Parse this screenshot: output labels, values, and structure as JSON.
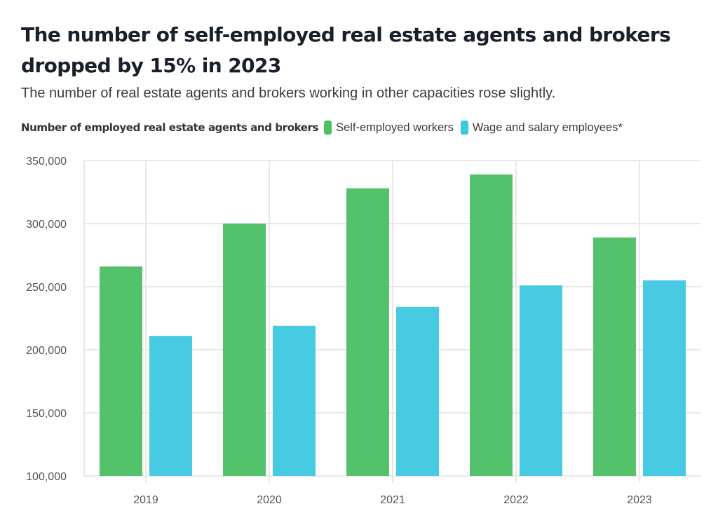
{
  "header": {
    "title": "The number of self-employed real estate agents and brokers dropped by 15% in 2023",
    "subtitle": "The number of real estate agents and brokers working in other capacities rose slightly."
  },
  "legend": {
    "title": "Number of employed real estate agents and brokers",
    "items": [
      {
        "label": "Self-employed workers",
        "color": "#4bbf63"
      },
      {
        "label": "Wage and salary employees*",
        "color": "#3cc8e0"
      }
    ]
  },
  "chart_data": {
    "type": "bar",
    "title": "The number of self-employed real estate agents and brokers dropped by 15% in 2023",
    "subtitle": "The number of real estate agents and brokers working in other capacities rose slightly.",
    "xlabel": "",
    "ylabel": "Number of employed real estate agents and brokers",
    "categories": [
      "2019",
      "2020",
      "2021",
      "2022",
      "2023"
    ],
    "series": [
      {
        "name": "Self-employed workers",
        "color": "#4bbf63",
        "values": [
          266000,
          300000,
          328000,
          339000,
          289000
        ]
      },
      {
        "name": "Wage and salary employees*",
        "color": "#3cc8e0",
        "values": [
          211000,
          219000,
          234000,
          251000,
          255000
        ]
      }
    ],
    "ylim": [
      100000,
      350000
    ],
    "yticks": [
      100000,
      150000,
      200000,
      250000,
      300000,
      350000
    ],
    "ytick_labels": [
      "100,000",
      "150,000",
      "200,000",
      "250,000",
      "300,000",
      "350,000"
    ],
    "grid": true,
    "legend_position": "top-left"
  }
}
